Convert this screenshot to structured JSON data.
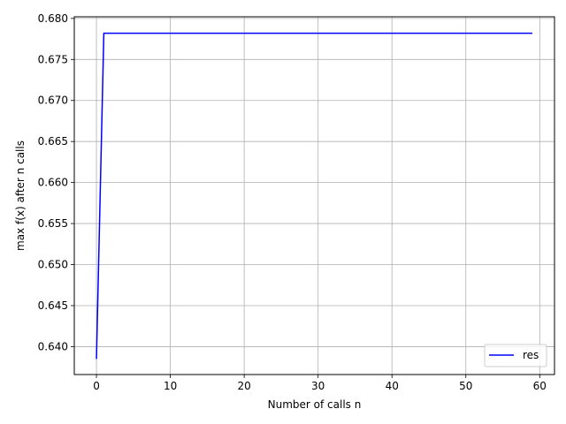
{
  "chart_data": {
    "type": "line",
    "title": "",
    "xlabel": "Number of calls n",
    "ylabel": "max f(x) after n calls",
    "xlim": [
      -3.0,
      62.0
    ],
    "ylim": [
      0.6366,
      0.6802
    ],
    "xticks": [
      0,
      10,
      20,
      30,
      40,
      50,
      60
    ],
    "yticks": [
      0.64,
      0.645,
      0.65,
      0.655,
      0.66,
      0.665,
      0.67,
      0.675,
      0.68
    ],
    "xtick_labels": [
      "0",
      "10",
      "20",
      "30",
      "40",
      "50",
      "60"
    ],
    "ytick_labels": [
      "0.640",
      "0.645",
      "0.650",
      "0.655",
      "0.660",
      "0.665",
      "0.670",
      "0.675",
      "0.680"
    ],
    "grid": true,
    "legend_position": "lower-right",
    "series": [
      {
        "name": "res",
        "color": "#0000ff",
        "x": [
          0,
          1,
          59
        ],
        "y": [
          0.6385,
          0.6782,
          0.6782
        ]
      }
    ]
  }
}
